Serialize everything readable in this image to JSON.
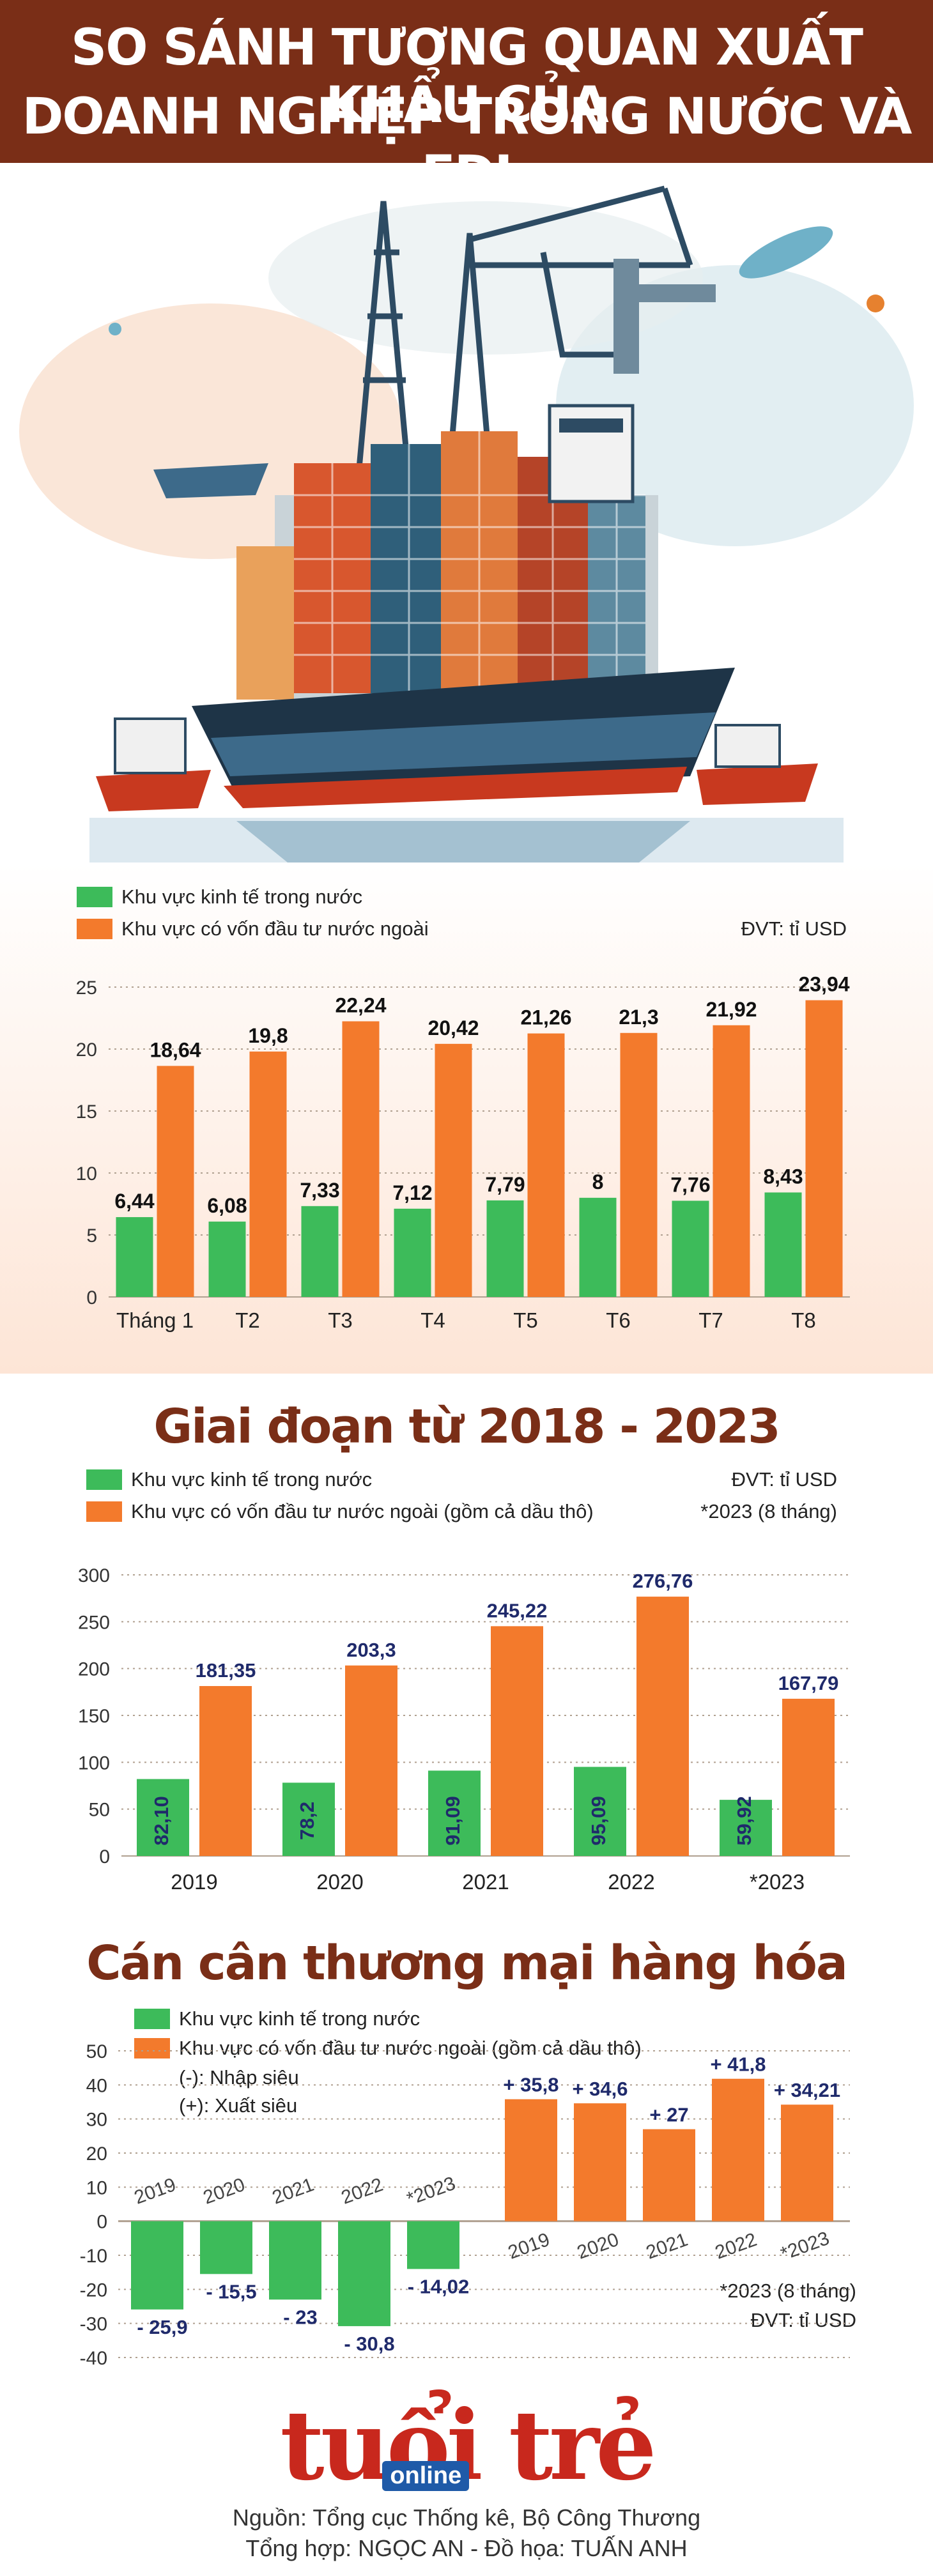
{
  "header": {
    "line1": "SO SÁNH TƯƠNG QUAN XUẤT KHẨU CỦA",
    "line2": "DOANH NGHIỆP TRONG NƯỚC VÀ FDI"
  },
  "colors": {
    "domestic": "#3dbb5a",
    "fdi": "#f37a2c",
    "banner": "#7a2e17",
    "label_dark": "#1f2a6b"
  },
  "hero": {
    "icon": "cargo-ship-illustration"
  },
  "chart1": {
    "legend_domestic": "Khu vực kinh tế trong nước",
    "legend_fdi": "Khu vực có vốn đầu tư nước ngoài",
    "unit": "ĐVT: tỉ USD"
  },
  "section2": {
    "title": "Giai đoạn từ 2018 - 2023",
    "legend_domestic": "Khu vực kinh tế trong nước",
    "legend_fdi": "Khu vực có vốn đầu tư nước ngoài (gồm cả dầu thô)",
    "unit": "ĐVT: tỉ USD",
    "note": "*2023 (8 tháng)"
  },
  "section3": {
    "title": "Cán cân thương mại hàng hóa",
    "legend_domestic": "Khu vực kinh tế trong nước",
    "legend_fdi": "Khu vực có vốn đầu tư nước ngoài (gồm cả dầu thô)",
    "note_minus": "(-): Nhập siêu",
    "note_plus": "(+): Xuất siêu",
    "note": "*2023 (8 tháng)",
    "unit": "ĐVT: tỉ USD"
  },
  "footer": {
    "logo_main": "tuổi trẻ",
    "logo_sub": "online",
    "source": "Nguồn: Tổng cục Thống kê, Bộ Công Thương",
    "credit": "Tổng hợp: NGỌC AN - Đồ họa: TUẤN ANH"
  },
  "chart_data": [
    {
      "type": "bar",
      "categories": [
        "Tháng 1",
        "T2",
        "T3",
        "T4",
        "T5",
        "T6",
        "T7",
        "T8"
      ],
      "series": [
        {
          "name": "Khu vực kinh tế trong nước",
          "values": [
            6.44,
            6.08,
            7.33,
            7.12,
            7.79,
            8,
            7.76,
            8.43
          ],
          "labels": [
            "6,44",
            "6,08",
            "7,33",
            "7,12",
            "7,79",
            "8",
            "7,76",
            "8,43"
          ]
        },
        {
          "name": "Khu vực có vốn đầu tư nước ngoài",
          "values": [
            18.64,
            19.8,
            22.24,
            20.42,
            21.26,
            21.3,
            21.92,
            23.94
          ],
          "labels": [
            "18,64",
            "19,8",
            "22,24",
            "20,42",
            "21,26",
            "21,3",
            "21,92",
            "23,94"
          ]
        }
      ],
      "yticks": [
        0,
        5,
        10,
        15,
        20,
        25
      ],
      "ylim": [
        0,
        25
      ],
      "grid": true
    },
    {
      "type": "bar",
      "title": "Giai đoạn từ 2018 - 2023",
      "categories": [
        "2019",
        "2020",
        "2021",
        "2022",
        "*2023"
      ],
      "series": [
        {
          "name": "Khu vực kinh tế trong nước",
          "values": [
            82.1,
            78.2,
            91.09,
            95.09,
            59.92
          ],
          "labels": [
            "82,10",
            "78,2",
            "91,09",
            "95,09",
            "59,92"
          ]
        },
        {
          "name": "Khu vực có vốn đầu tư nước ngoài (gồm cả dầu thô)",
          "values": [
            181.35,
            203.3,
            245.22,
            276.76,
            167.79
          ],
          "labels": [
            "181,35",
            "203,3",
            "245,22",
            "276,76",
            "167,79"
          ]
        }
      ],
      "yticks": [
        0,
        50,
        100,
        150,
        200,
        250,
        300
      ],
      "ylim": [
        0,
        300
      ],
      "grid": true
    },
    {
      "type": "bar",
      "title": "Cán cân thương mại hàng hóa",
      "series": [
        {
          "name": "Khu vực kinh tế trong nước",
          "categories": [
            "2019",
            "2020",
            "2021",
            "2022",
            "*2023"
          ],
          "values": [
            -25.9,
            -15.5,
            -23,
            -30.8,
            -14.02
          ],
          "labels": [
            "- 25,9",
            "- 15,5",
            "- 23",
            "- 30,8",
            "- 14,02"
          ]
        },
        {
          "name": "Khu vực có vốn đầu tư nước ngoài (gồm cả dầu thô)",
          "categories": [
            "2019",
            "2020",
            "2021",
            "2022",
            "*2023"
          ],
          "values": [
            35.8,
            34.6,
            27,
            41.8,
            34.21
          ],
          "labels": [
            "+ 35,8",
            "+ 34,6",
            "+ 27",
            "+ 41,8",
            "+ 34,21"
          ]
        }
      ],
      "yticks": [
        -40,
        -30,
        -20,
        -10,
        0,
        10,
        20,
        30,
        40,
        50
      ],
      "ylim": [
        -40,
        50
      ],
      "grid": true
    }
  ]
}
